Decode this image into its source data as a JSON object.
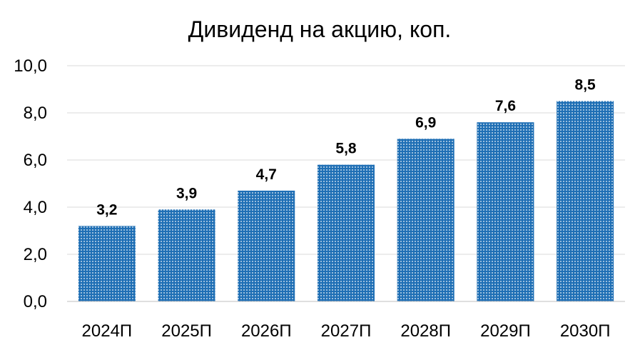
{
  "chart_data": {
    "type": "bar",
    "title": "Дивиденд на акцию, коп.",
    "xlabel": "",
    "ylabel": "",
    "categories": [
      "2024П",
      "2025П",
      "2026П",
      "2027П",
      "2028П",
      "2029П",
      "2030П"
    ],
    "values": [
      3.2,
      3.9,
      4.7,
      5.8,
      6.9,
      7.6,
      8.5
    ],
    "value_labels": [
      "3,2",
      "3,9",
      "4,7",
      "5,8",
      "6,9",
      "7,6",
      "8,5"
    ],
    "ylim": [
      0,
      10
    ],
    "yticks": [
      0,
      2,
      4,
      6,
      8,
      10
    ],
    "ytick_labels": [
      "0,0",
      "2,0",
      "4,0",
      "6,0",
      "8,0",
      "10,0"
    ],
    "grid": true,
    "legend": "none",
    "bar_color": "#1f6fb5",
    "bar_pattern": "dotted"
  }
}
